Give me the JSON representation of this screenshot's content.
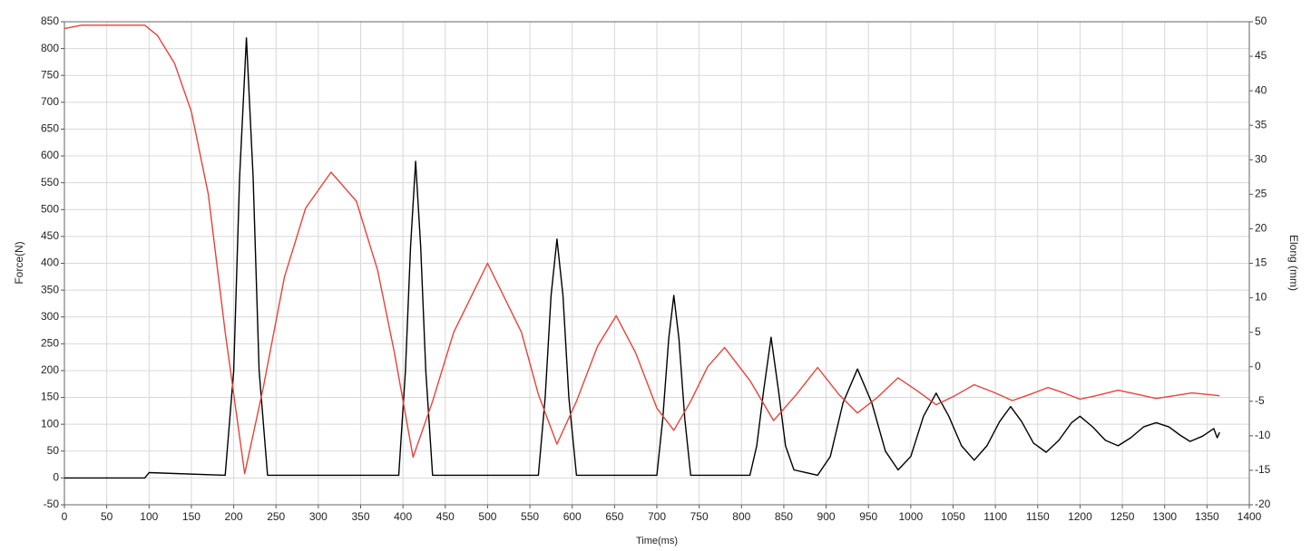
{
  "chart_data": {
    "type": "line",
    "xlabel": "Time(ms)",
    "ylabel": "Force(N)",
    "y2label": "Elong (mm)",
    "xlim": [
      0,
      1400
    ],
    "xticks": [
      0,
      50,
      100,
      150,
      200,
      250,
      300,
      350,
      400,
      450,
      500,
      550,
      600,
      650,
      700,
      750,
      800,
      850,
      900,
      950,
      1000,
      1050,
      1100,
      1150,
      1200,
      1250,
      1300,
      1350,
      1400
    ],
    "ylim": [
      -50,
      850
    ],
    "yticks": [
      -50,
      0,
      50,
      100,
      150,
      200,
      250,
      300,
      350,
      400,
      450,
      500,
      550,
      600,
      650,
      700,
      750,
      800,
      850
    ],
    "y2lim": [
      -20,
      50
    ],
    "y2ticks": [
      -20,
      -15,
      -10,
      -5,
      0,
      5,
      10,
      15,
      20,
      25,
      30,
      35,
      40,
      45,
      50
    ],
    "grid": true,
    "series": [
      {
        "name": "Force",
        "color": "#000000",
        "axis": "y",
        "x": [
          0,
          95,
          100,
          190,
          200,
          207,
          215,
          223,
          230,
          240,
          395,
          403,
          409,
          415,
          421,
          427,
          435,
          560,
          568,
          575,
          582,
          589,
          596,
          605,
          700,
          707,
          714,
          720,
          726,
          733,
          740,
          810,
          818,
          826,
          835,
          844,
          852,
          862,
          890,
          905,
          920,
          937,
          954,
          970,
          985,
          1000,
          1015,
          1030,
          1045,
          1060,
          1075,
          1090,
          1105,
          1118,
          1131,
          1145,
          1160,
          1175,
          1190,
          1200,
          1215,
          1230,
          1245,
          1260,
          1275,
          1290,
          1305,
          1318,
          1330,
          1345,
          1358,
          1362,
          1365
        ],
        "values": [
          0,
          0,
          10,
          5,
          200,
          560,
          820,
          560,
          200,
          5,
          5,
          200,
          430,
          590,
          430,
          200,
          5,
          5,
          150,
          340,
          445,
          340,
          150,
          5,
          5,
          110,
          260,
          340,
          260,
          110,
          5,
          5,
          60,
          160,
          262,
          160,
          60,
          15,
          5,
          40,
          140,
          203,
          140,
          50,
          15,
          40,
          115,
          158,
          115,
          60,
          33,
          60,
          105,
          133,
          105,
          65,
          48,
          70,
          103,
          115,
          95,
          70,
          60,
          75,
          95,
          103,
          95,
          80,
          68,
          78,
          92,
          75,
          85
        ]
      },
      {
        "name": "Elong",
        "color": "#e8423a",
        "axis": "y2",
        "x": [
          0,
          20,
          95,
          110,
          130,
          150,
          170,
          190,
          213,
          235,
          260,
          285,
          315,
          345,
          370,
          390,
          412,
          435,
          460,
          500,
          540,
          560,
          582,
          605,
          630,
          652,
          675,
          700,
          720,
          740,
          760,
          780,
          810,
          838,
          865,
          890,
          915,
          937,
          960,
          985,
          1008,
          1030,
          1052,
          1075,
          1098,
          1120,
          1141,
          1162,
          1181,
          1200,
          1222,
          1245,
          1268,
          1290,
          1311,
          1332,
          1350,
          1365
        ],
        "values": [
          49,
          49.5,
          49.5,
          48,
          44,
          37,
          25,
          5,
          -15.5,
          -3,
          13,
          23,
          28.2,
          24,
          14,
          2,
          -13.1,
          -5,
          5,
          15,
          5,
          -4,
          -11.2,
          -5,
          3,
          7.4,
          2,
          -6,
          -9.2,
          -5,
          0,
          2.8,
          -2,
          -7.8,
          -4,
          -0.1,
          -4,
          -6.7,
          -4.5,
          -1.6,
          -3.5,
          -5.5,
          -4.2,
          -2.6,
          -3.7,
          -4.9,
          -4,
          -3,
          -3.8,
          -4.7,
          -4.1,
          -3.4,
          -4,
          -4.6,
          -4.2,
          -3.8,
          -4,
          -4.2
        ]
      }
    ]
  }
}
